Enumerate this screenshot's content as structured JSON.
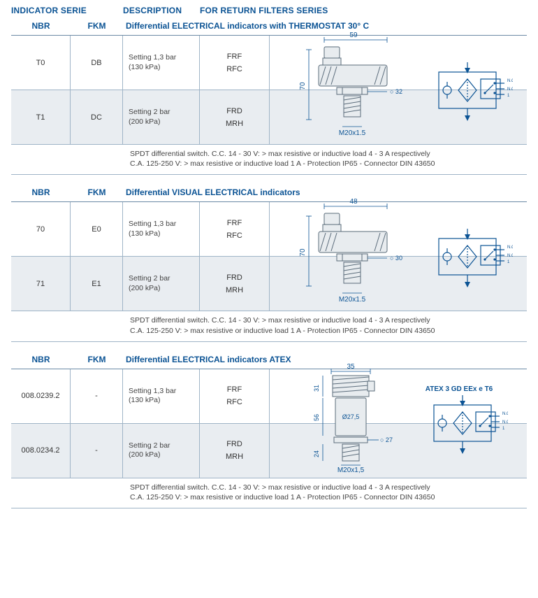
{
  "header": {
    "indicator": "INDICATOR SERIE",
    "description": "DESCRIPTION",
    "for": "FOR RETURN FILTERS SERIES"
  },
  "cols": {
    "nbr": "NBR",
    "fkm": "FKM"
  },
  "sections": [
    {
      "title": "Differential ELECTRICAL indicators with THERMOSTAT 30° C",
      "rows": [
        {
          "nbr": "T0",
          "fkm": "DB",
          "desc1": "Setting 1,3 bar",
          "desc2": "(130 kPa)",
          "s1": "FRF",
          "s2": "RFC"
        },
        {
          "nbr": "T1",
          "fkm": "DC",
          "desc1": "Setting 2 bar",
          "desc2": "(200 kPa)",
          "s1": "FRD",
          "s2": "MRH"
        }
      ],
      "note1": "SPDT differential switch. C.C. 14 - 30 V: > max resistive or inductive load 4 - 3 A respectively",
      "note2": "C.A. 125-250 V: > max resistive or inductive load 1 A - Protection IP65 - Connector DIN 43650",
      "diagram": {
        "width": "59",
        "height": "70",
        "dia": "32",
        "thread": "M20x1.5",
        "type": "elbow"
      }
    },
    {
      "title": "Differential VISUAL ELECTRICAL indicators",
      "rows": [
        {
          "nbr": "70",
          "fkm": "E0",
          "desc1": "Setting 1,3 bar",
          "desc2": "(130 kPa)",
          "s1": "FRF",
          "s2": "RFC"
        },
        {
          "nbr": "71",
          "fkm": "E1",
          "desc1": "Setting 2 bar",
          "desc2": "(200 kPa)",
          "s1": "FRD",
          "s2": "MRH"
        }
      ],
      "note1": "SPDT differential switch. C.C. 14 - 30 V: > max resistive or inductive load 4 - 3 A respectively",
      "note2": "C.A. 125-250 V: > max resistive or inductive load 1 A - Protection IP65 - Connector DIN 43650",
      "diagram": {
        "width": "48",
        "height": "70",
        "dia": "30",
        "thread": "M20x1.5",
        "type": "elbow"
      }
    },
    {
      "title": "Differential ELECTRICAL indicators ATEX",
      "rows": [
        {
          "nbr": "008.0239.2",
          "fkm": "-",
          "desc1": "Setting 1,3 bar",
          "desc2": "(130 kPa)",
          "s1": "FRF",
          "s2": "RFC"
        },
        {
          "nbr": "008.0234.2",
          "fkm": "-",
          "desc1": "Setting 2 bar",
          "desc2": "(200 kPa)",
          "s1": "FRD",
          "s2": "MRH"
        }
      ],
      "note1": "SPDT differential switch. C.C. 14 - 30 V: > max resistive or inductive load 4 - 3 A respectively",
      "note2": "C.A. 125-250 V: > max resistive or inductive load 1 A - Protection IP65 - Connector DIN 43650",
      "diagram": {
        "width": "35",
        "h1": "31",
        "h2": "56",
        "h3": "24",
        "dia": "27",
        "dia2": "Ø27,5",
        "thread": "M20x1,5",
        "type": "straight",
        "atex": "ATEX 3 GD EEx e T6"
      }
    }
  ],
  "colors": {
    "brand": "#0b5394",
    "rule": "#9fb4c7",
    "altbg": "#e9edf1",
    "text": "#333333"
  }
}
